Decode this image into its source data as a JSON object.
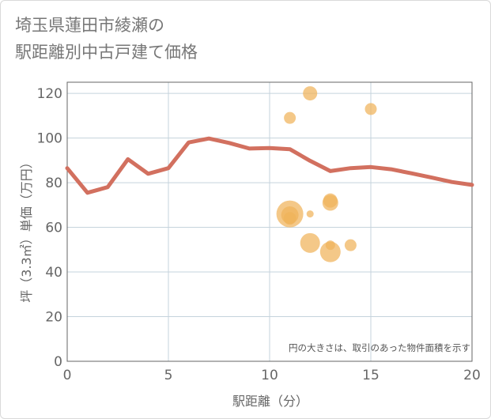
{
  "chart_data": {
    "type": "scatter+line",
    "title_lines": [
      "埼玉県蓮田市綾瀬の",
      "駅距離別中古戸建て価格"
    ],
    "xlabel": "駅距離（分）",
    "ylabel": "坪（3.3㎡）単価（万円）",
    "xlim": [
      0,
      20
    ],
    "ylim": [
      0,
      125
    ],
    "x_ticks": [
      0,
      5,
      10,
      15,
      20
    ],
    "y_ticks": [
      0,
      20,
      40,
      60,
      80,
      100,
      120
    ],
    "grid": true,
    "note": "円の大きさは、取引のあった物件面積を示す",
    "line_series": {
      "name": "average",
      "color": "#d2705f",
      "points": [
        {
          "x": 0,
          "y": 86.5
        },
        {
          "x": 1,
          "y": 75.5
        },
        {
          "x": 2,
          "y": 78
        },
        {
          "x": 3,
          "y": 90.5
        },
        {
          "x": 4,
          "y": 84
        },
        {
          "x": 5,
          "y": 86.5
        },
        {
          "x": 6,
          "y": 98
        },
        {
          "x": 7,
          "y": 99.8
        },
        {
          "x": 8,
          "y": 97.8
        },
        {
          "x": 9,
          "y": 95.3
        },
        {
          "x": 10,
          "y": 95.5
        },
        {
          "x": 11,
          "y": 95
        },
        {
          "x": 12,
          "y": 89.8
        },
        {
          "x": 13,
          "y": 85.2
        },
        {
          "x": 14,
          "y": 86.5
        },
        {
          "x": 15,
          "y": 87
        },
        {
          "x": 16,
          "y": 86
        },
        {
          "x": 17,
          "y": 84.2
        },
        {
          "x": 18,
          "y": 82.3
        },
        {
          "x": 19,
          "y": 80.3
        },
        {
          "x": 20,
          "y": 79
        }
      ]
    },
    "scatter_series": {
      "name": "transactions",
      "color": "#f0b35a",
      "points": [
        {
          "x": 11,
          "y": 109,
          "size": 7.5
        },
        {
          "x": 12,
          "y": 120,
          "size": 9
        },
        {
          "x": 15,
          "y": 113,
          "size": 7.5
        },
        {
          "x": 11,
          "y": 66,
          "size": 17
        },
        {
          "x": 11,
          "y": 65.5,
          "size": 11
        },
        {
          "x": 11,
          "y": 64,
          "size": 8
        },
        {
          "x": 12,
          "y": 66,
          "size": 4.5
        },
        {
          "x": 13,
          "y": 72,
          "size": 9
        },
        {
          "x": 13,
          "y": 71,
          "size": 10
        },
        {
          "x": 12,
          "y": 53,
          "size": 12.5
        },
        {
          "x": 13,
          "y": 49,
          "size": 13
        },
        {
          "x": 13,
          "y": 52,
          "size": 6
        },
        {
          "x": 14,
          "y": 52,
          "size": 7.5
        }
      ]
    }
  }
}
